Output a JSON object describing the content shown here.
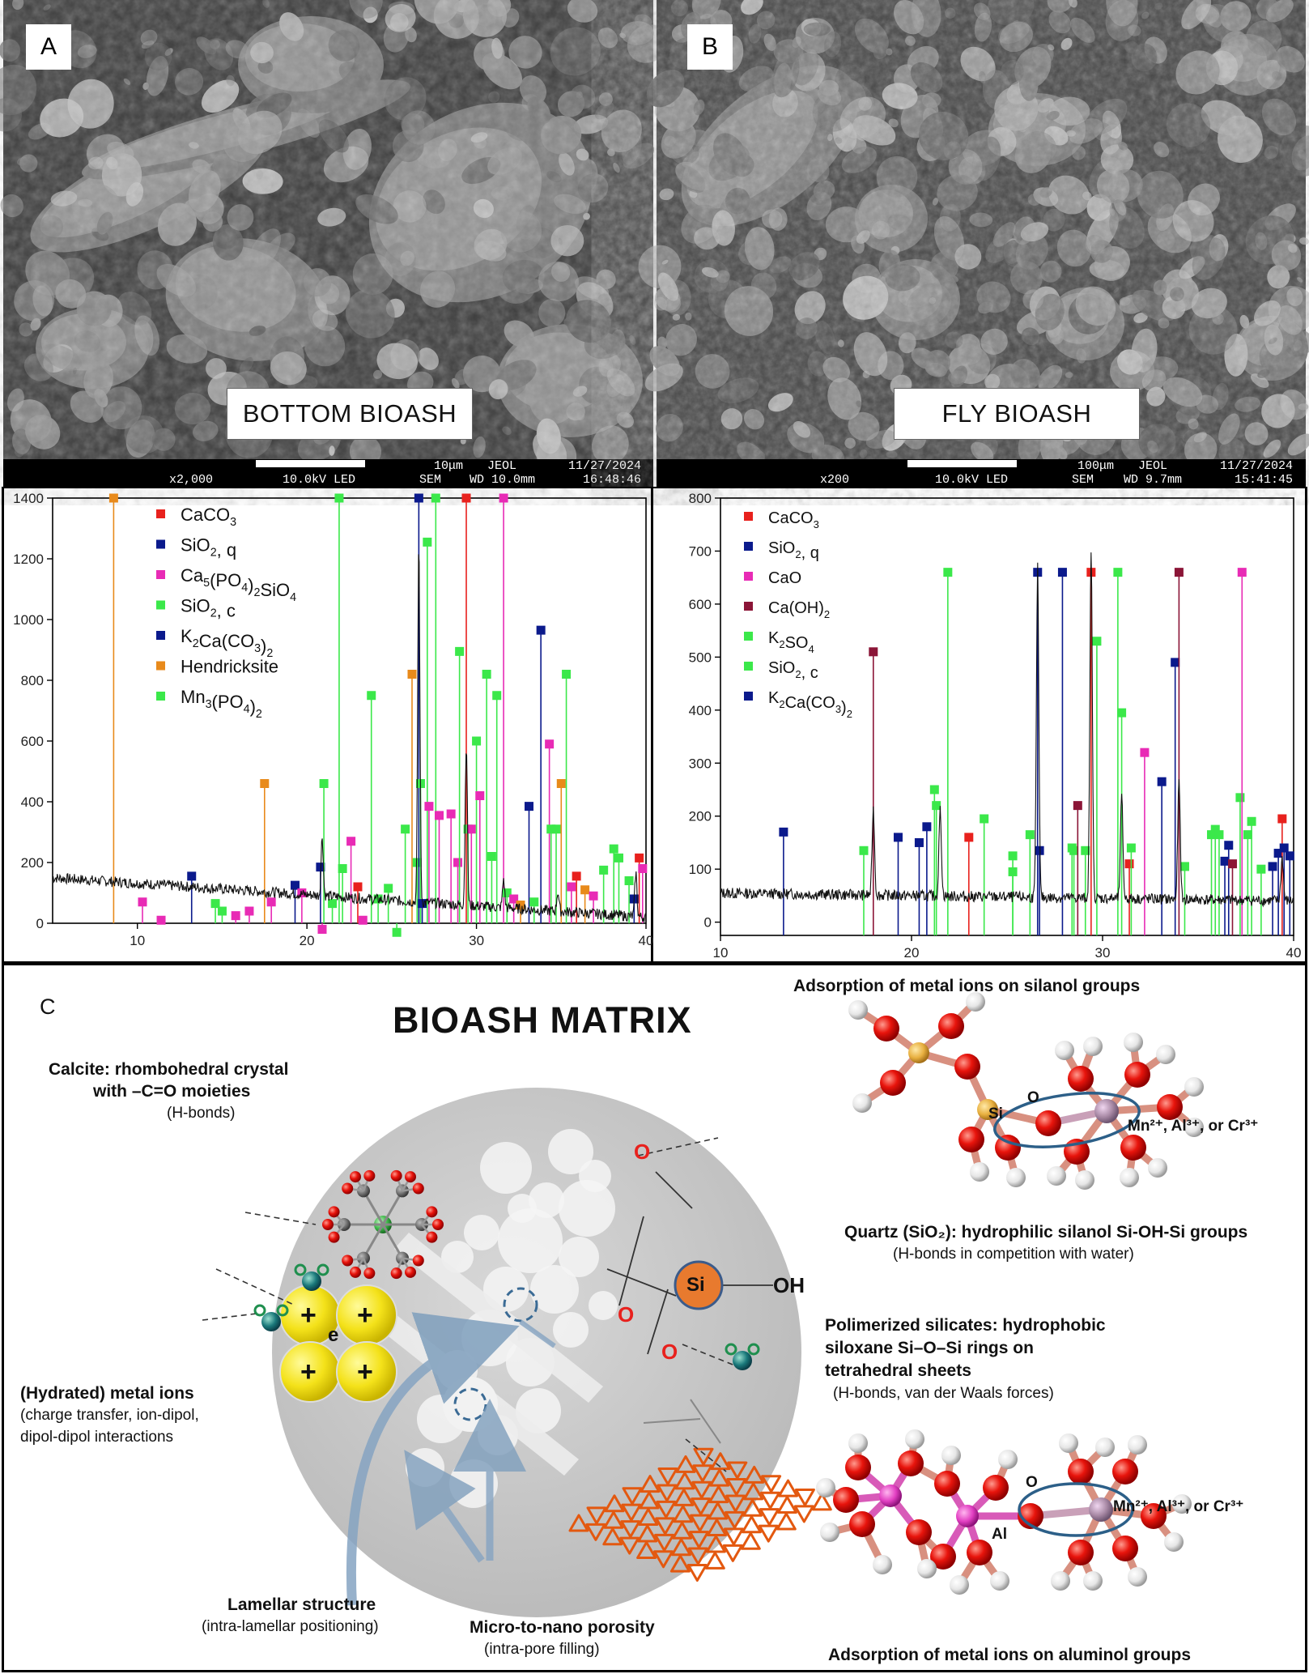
{
  "panel_a": {
    "letter": "A",
    "label": "BOTTOM BIOASH",
    "info": {
      "mag": "x2,000",
      "kv": "10.0kV LED",
      "scale": "10μm",
      "maker": "JEOL",
      "mode": "SEM",
      "wd": "WD 10.0mm",
      "date": "11/27/2024",
      "time": "16:48:46"
    }
  },
  "panel_b": {
    "letter": "B",
    "label": "FLY BIOASH",
    "info": {
      "mag": "x200",
      "kv": "10.0kV LED",
      "scale": "100μm",
      "maker": "JEOL",
      "mode": "SEM",
      "wd": "WD 9.7mm",
      "date": "11/27/2024",
      "time": "15:41:45"
    }
  },
  "panel_c": {
    "letter": "C",
    "title": "BIOASH MATRIX",
    "calcite_title": "Calcite: rhombohedral crystal",
    "calcite_title2": "with –C=O moieties",
    "calcite_sub": "(H-bonds)",
    "metal_title": "(Hydrated) metal ions",
    "metal_sub1": "(charge transfer, ion-dipol,",
    "metal_sub2": "dipol-dipol interactions",
    "lamellar_title": "Lamellar structure",
    "lamellar_sub": "(intra-lamellar positioning)",
    "porosity_title": "Micro-to-nano porosity",
    "porosity_sub": "(intra-pore filling)",
    "silanol_title": "Adsorption of metal ions on silanol groups",
    "quartz_title": "Quartz (SiO₂): hydrophilic silanol Si-OH-Si groups",
    "quartz_sub": "(H-bonds in competition with water)",
    "poly_title1": "Polimerized silicates: hydrophobic",
    "poly_title2": "siloxane Si–O–Si rings on",
    "poly_title3": "tetrahedral sheets",
    "poly_sub": "(H-bonds, van der Waals forces)",
    "aluminol_title": "Adsorption of metal ions on aluminol groups",
    "si_label": "Si",
    "o_label": "O",
    "oh_label": "OH",
    "e_label": "e",
    "plus": "+",
    "al_label": "Al",
    "metal_label": "Mn²⁺, Al³⁺, or Cr³⁺"
  },
  "colors": {
    "red": "#e8211d",
    "navy": "#0b1a8c",
    "magenta": "#e82bb5",
    "green": "#3be84a",
    "orange": "#e88a1b",
    "maroon": "#8b1537",
    "si_orange": "#e87a2e"
  },
  "chart_data": [
    {
      "type": "line",
      "xlim": [
        5,
        40
      ],
      "ylim": [
        0,
        1400
      ],
      "xticks": [
        10,
        20,
        30,
        40
      ],
      "yticks": [
        0,
        200,
        400,
        600,
        800,
        1000,
        1200,
        1400
      ],
      "legend": [
        {
          "name": "CaCO3",
          "text": "CaCO",
          "sub": "3",
          "color": "#e8211d"
        },
        {
          "name": "SiO2, q",
          "text": "SiO",
          "sub": "2",
          "after": ", q",
          "color": "#0b1a8c"
        },
        {
          "name": "Ca5(PO4)2SiO4",
          "text": "Ca",
          "sub": "5",
          "after": "(PO",
          "sub2": "4",
          "after2": ")",
          "sub3": "2",
          "after3": "SiO",
          "sub4": "4",
          "color": "#e82bb5"
        },
        {
          "name": "SiO2, c",
          "text": "SiO",
          "sub": "2",
          "after": ", c",
          "color": "#3be84a"
        },
        {
          "name": "K2Ca(CO3)2",
          "text": "K",
          "sub": "2",
          "after": "Ca(CO",
          "sub2": "3",
          "after2": ")",
          "sub3": "2",
          "color": "#0b1a8c"
        },
        {
          "name": "Hendricksite",
          "text": "Hendricksite",
          "color": "#e88a1b"
        },
        {
          "name": "Mn3(PO4)2",
          "text": "Mn",
          "sub": "3",
          "after": "(PO",
          "sub2": "4",
          "after2": ")",
          "sub3": "2",
          "color": "#3be84a"
        }
      ],
      "peaks": [
        {
          "x": 8.6,
          "y": 1400,
          "c": "#e88a1b"
        },
        {
          "x": 10.3,
          "y": 70,
          "c": "#e82bb5"
        },
        {
          "x": 11.4,
          "y": 10,
          "c": "#e82bb5"
        },
        {
          "x": 13.2,
          "y": 155,
          "c": "#0b1a8c"
        },
        {
          "x": 14.6,
          "y": 65,
          "c": "#3be84a"
        },
        {
          "x": 15.0,
          "y": 40,
          "c": "#3be84a"
        },
        {
          "x": 15.8,
          "y": 25,
          "c": "#e82bb5"
        },
        {
          "x": 16.6,
          "y": 40,
          "c": "#e82bb5"
        },
        {
          "x": 17.5,
          "y": 460,
          "c": "#e88a1b"
        },
        {
          "x": 17.9,
          "y": 70,
          "c": "#e82bb5"
        },
        {
          "x": 19.3,
          "y": 125,
          "c": "#0b1a8c"
        },
        {
          "x": 19.7,
          "y": 100,
          "c": "#e82bb5"
        },
        {
          "x": 20.8,
          "y": 185,
          "c": "#0b1a8c"
        },
        {
          "x": 20.9,
          "y": -20,
          "c": "#e82bb5"
        },
        {
          "x": 21.0,
          "y": 460,
          "c": "#3be84a"
        },
        {
          "x": 21.5,
          "y": 65,
          "c": "#3be84a"
        },
        {
          "x": 21.9,
          "y": 1400,
          "c": "#3be84a"
        },
        {
          "x": 22.1,
          "y": 180,
          "c": "#3be84a"
        },
        {
          "x": 22.6,
          "y": 270,
          "c": "#e82bb5"
        },
        {
          "x": 23.0,
          "y": 120,
          "c": "#e8211d"
        },
        {
          "x": 23.3,
          "y": 10,
          "c": "#e82bb5"
        },
        {
          "x": 23.8,
          "y": 750,
          "c": "#3be84a"
        },
        {
          "x": 24.2,
          "y": 80,
          "c": "#3be84a"
        },
        {
          "x": 24.8,
          "y": 115,
          "c": "#3be84a"
        },
        {
          "x": 25.3,
          "y": -30,
          "c": "#3be84a"
        },
        {
          "x": 25.8,
          "y": 310,
          "c": "#3be84a"
        },
        {
          "x": 26.2,
          "y": 820,
          "c": "#e88a1b"
        },
        {
          "x": 26.5,
          "y": 200,
          "c": "#3be84a"
        },
        {
          "x": 26.6,
          "y": 1400,
          "c": "#0b1a8c"
        },
        {
          "x": 26.7,
          "y": 460,
          "c": "#3be84a"
        },
        {
          "x": 26.8,
          "y": 65,
          "c": "#0b1a8c"
        },
        {
          "x": 27.1,
          "y": 1255,
          "c": "#3be84a"
        },
        {
          "x": 27.2,
          "y": 385,
          "c": "#e82bb5"
        },
        {
          "x": 27.6,
          "y": 1400,
          "c": "#3be84a"
        },
        {
          "x": 27.8,
          "y": 355,
          "c": "#e82bb5"
        },
        {
          "x": 28.5,
          "y": 360,
          "c": "#e82bb5"
        },
        {
          "x": 28.9,
          "y": 200,
          "c": "#e82bb5"
        },
        {
          "x": 29.0,
          "y": 895,
          "c": "#3be84a"
        },
        {
          "x": 29.4,
          "y": 1400,
          "c": "#e8211d"
        },
        {
          "x": 29.5,
          "y": 310,
          "c": "#3be84a"
        },
        {
          "x": 29.7,
          "y": 310,
          "c": "#e82bb5"
        },
        {
          "x": 30.0,
          "y": 600,
          "c": "#3be84a"
        },
        {
          "x": 30.2,
          "y": 420,
          "c": "#e82bb5"
        },
        {
          "x": 30.6,
          "y": 820,
          "c": "#3be84a"
        },
        {
          "x": 30.9,
          "y": 220,
          "c": "#3be84a"
        },
        {
          "x": 31.2,
          "y": 750,
          "c": "#3be84a"
        },
        {
          "x": 31.6,
          "y": 1400,
          "c": "#e82bb5"
        },
        {
          "x": 31.8,
          "y": 100,
          "c": "#3be84a"
        },
        {
          "x": 32.2,
          "y": 80,
          "c": "#e82bb5"
        },
        {
          "x": 32.6,
          "y": 60,
          "c": "#e88a1b"
        },
        {
          "x": 33.1,
          "y": 385,
          "c": "#0b1a8c"
        },
        {
          "x": 33.4,
          "y": 70,
          "c": "#3be84a"
        },
        {
          "x": 33.8,
          "y": 965,
          "c": "#0b1a8c"
        },
        {
          "x": 34.3,
          "y": 590,
          "c": "#e82bb5"
        },
        {
          "x": 34.4,
          "y": 310,
          "c": "#3be84a"
        },
        {
          "x": 34.7,
          "y": 310,
          "c": "#3be84a"
        },
        {
          "x": 35.0,
          "y": 460,
          "c": "#e88a1b"
        },
        {
          "x": 35.3,
          "y": 820,
          "c": "#3be84a"
        },
        {
          "x": 35.6,
          "y": 120,
          "c": "#e82bb5"
        },
        {
          "x": 35.9,
          "y": 155,
          "c": "#e8211d"
        },
        {
          "x": 36.4,
          "y": 110,
          "c": "#e88a1b"
        },
        {
          "x": 36.9,
          "y": 90,
          "c": "#e82bb5"
        },
        {
          "x": 37.5,
          "y": 175,
          "c": "#3be84a"
        },
        {
          "x": 38.1,
          "y": 245,
          "c": "#3be84a"
        },
        {
          "x": 38.4,
          "y": 215,
          "c": "#3be84a"
        },
        {
          "x": 39.0,
          "y": 140,
          "c": "#3be84a"
        },
        {
          "x": 39.3,
          "y": 80,
          "c": "#0b1a8c"
        },
        {
          "x": 39.6,
          "y": 215,
          "c": "#e8211d"
        },
        {
          "x": 39.8,
          "y": 180,
          "c": "#e82bb5"
        }
      ],
      "bigpeaks": [
        {
          "x": 20.9,
          "y": 300
        },
        {
          "x": 26.6,
          "y": 1290
        },
        {
          "x": 29.4,
          "y": 640
        },
        {
          "x": 31.6,
          "y": 200
        },
        {
          "x": 34.8,
          "y": 170
        },
        {
          "x": 39.4,
          "y": 250
        }
      ],
      "baseline_start": 150,
      "baseline_end": 20
    },
    {
      "type": "line",
      "xlim": [
        10,
        40
      ],
      "ylim": [
        -25,
        800
      ],
      "xticks": [
        10,
        20,
        30,
        40
      ],
      "yticks": [
        0,
        100,
        200,
        300,
        400,
        500,
        600,
        700,
        800
      ],
      "legend": [
        {
          "name": "CaCO3",
          "text": "CaCO",
          "sub": "3",
          "color": "#e8211d"
        },
        {
          "name": "SiO2, q",
          "text": "SiO",
          "sub": "2",
          "after": ", q",
          "color": "#0b1a8c"
        },
        {
          "name": "CaO",
          "text": "CaO",
          "color": "#e82bb5"
        },
        {
          "name": "Ca(OH)2",
          "text": "Ca(OH)",
          "sub": "2",
          "color": "#8b1537"
        },
        {
          "name": "K2SO4",
          "text": "K",
          "sub": "2",
          "after": "SO",
          "sub2": "4",
          "color": "#3be84a"
        },
        {
          "name": "SiO2, c",
          "text": "SiO",
          "sub": "2",
          "after": ", c",
          "color": "#3be84a"
        },
        {
          "name": "K2Ca(CO3)2",
          "text": "K",
          "sub": "2",
          "after": "Ca(CO",
          "sub2": "3",
          "after2": ")",
          "sub3": "2",
          "color": "#0b1a8c"
        }
      ],
      "peaks": [
        {
          "x": 13.3,
          "y": 170,
          "c": "#0b1a8c"
        },
        {
          "x": 17.5,
          "y": 135,
          "c": "#3be84a"
        },
        {
          "x": 18.0,
          "y": 510,
          "c": "#8b1537"
        },
        {
          "x": 19.3,
          "y": 160,
          "c": "#0b1a8c"
        },
        {
          "x": 20.4,
          "y": 150,
          "c": "#0b1a8c"
        },
        {
          "x": 20.8,
          "y": 180,
          "c": "#0b1a8c"
        },
        {
          "x": 21.2,
          "y": 250,
          "c": "#3be84a"
        },
        {
          "x": 21.3,
          "y": 220,
          "c": "#3be84a"
        },
        {
          "x": 21.9,
          "y": 660,
          "c": "#3be84a"
        },
        {
          "x": 23.0,
          "y": 160,
          "c": "#e8211d"
        },
        {
          "x": 23.8,
          "y": 195,
          "c": "#3be84a"
        },
        {
          "x": 25.3,
          "y": 125,
          "c": "#3be84a"
        },
        {
          "x": 25.3,
          "y": 95,
          "c": "#3be84a"
        },
        {
          "x": 26.2,
          "y": 165,
          "c": "#3be84a"
        },
        {
          "x": 26.6,
          "y": 660,
          "c": "#0b1a8c"
        },
        {
          "x": 26.7,
          "y": 135,
          "c": "#0b1a8c"
        },
        {
          "x": 27.9,
          "y": 660,
          "c": "#0b1a8c"
        },
        {
          "x": 28.4,
          "y": 140,
          "c": "#3be84a"
        },
        {
          "x": 28.5,
          "y": 135,
          "c": "#3be84a"
        },
        {
          "x": 28.7,
          "y": 220,
          "c": "#8b1537"
        },
        {
          "x": 29.1,
          "y": 135,
          "c": "#3be84a"
        },
        {
          "x": 29.4,
          "y": 660,
          "c": "#e8211d"
        },
        {
          "x": 29.7,
          "y": 530,
          "c": "#3be84a"
        },
        {
          "x": 30.8,
          "y": 660,
          "c": "#3be84a"
        },
        {
          "x": 31.0,
          "y": 395,
          "c": "#3be84a"
        },
        {
          "x": 31.4,
          "y": 110,
          "c": "#e8211d"
        },
        {
          "x": 31.5,
          "y": 140,
          "c": "#3be84a"
        },
        {
          "x": 32.2,
          "y": 320,
          "c": "#e82bb5"
        },
        {
          "x": 33.1,
          "y": 265,
          "c": "#0b1a8c"
        },
        {
          "x": 33.8,
          "y": 490,
          "c": "#0b1a8c"
        },
        {
          "x": 34.0,
          "y": 660,
          "c": "#8b1537"
        },
        {
          "x": 34.3,
          "y": 105,
          "c": "#3be84a"
        },
        {
          "x": 35.7,
          "y": 165,
          "c": "#3be84a"
        },
        {
          "x": 35.9,
          "y": 175,
          "c": "#3be84a"
        },
        {
          "x": 36.1,
          "y": 165,
          "c": "#3be84a"
        },
        {
          "x": 36.4,
          "y": 115,
          "c": "#0b1a8c"
        },
        {
          "x": 36.6,
          "y": 145,
          "c": "#0b1a8c"
        },
        {
          "x": 36.8,
          "y": 110,
          "c": "#8b1537"
        },
        {
          "x": 37.2,
          "y": 235,
          "c": "#3be84a"
        },
        {
          "x": 37.3,
          "y": 660,
          "c": "#e82bb5"
        },
        {
          "x": 37.6,
          "y": 165,
          "c": "#3be84a"
        },
        {
          "x": 37.8,
          "y": 190,
          "c": "#3be84a"
        },
        {
          "x": 38.3,
          "y": 100,
          "c": "#3be84a"
        },
        {
          "x": 38.9,
          "y": 105,
          "c": "#0b1a8c"
        },
        {
          "x": 39.2,
          "y": 130,
          "c": "#0b1a8c"
        },
        {
          "x": 39.4,
          "y": 195,
          "c": "#e8211d"
        },
        {
          "x": 39.5,
          "y": 140,
          "c": "#0b1a8c"
        },
        {
          "x": 39.8,
          "y": 125,
          "c": "#0b1a8c"
        }
      ],
      "bigpeaks": [
        {
          "x": 18.0,
          "y": 200
        },
        {
          "x": 21.5,
          "y": 200
        },
        {
          "x": 26.6,
          "y": 660
        },
        {
          "x": 29.4,
          "y": 700
        },
        {
          "x": 31.0,
          "y": 230
        },
        {
          "x": 34.0,
          "y": 260
        },
        {
          "x": 39.4,
          "y": 120
        }
      ],
      "baseline_start": 55,
      "baseline_end": 40
    }
  ]
}
